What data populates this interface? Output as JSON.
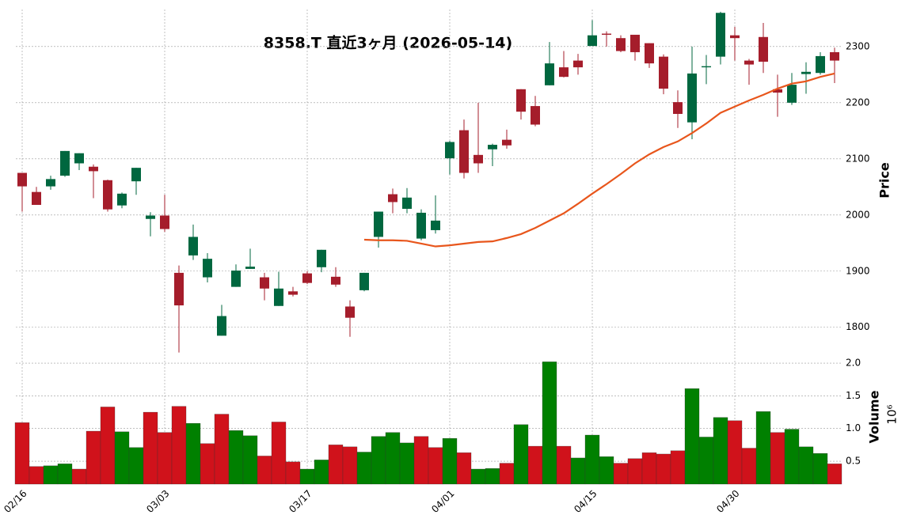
{
  "chart_data": [
    {
      "type": "candlestick",
      "title": "8358.T  直近3ヶ月  (2026-05-14)",
      "categories": [
        "02/16",
        null,
        null,
        null,
        null,
        null,
        null,
        null,
        null,
        null,
        "03/03",
        null,
        null,
        null,
        null,
        null,
        null,
        null,
        null,
        null,
        "03/17",
        null,
        null,
        null,
        null,
        null,
        null,
        null,
        null,
        null,
        "04/01",
        null,
        null,
        null,
        null,
        null,
        null,
        null,
        null,
        null,
        "04/15",
        null,
        null,
        null,
        null,
        null,
        null,
        null,
        null,
        null,
        "04/30",
        null,
        null,
        null,
        null,
        null,
        null,
        null
      ],
      "open": [
        2075,
        2041,
        2051,
        2070,
        2092,
        2086,
        2062,
        2017,
        2060,
        1993,
        1999,
        1897,
        1928,
        1889,
        1785,
        1872,
        1904,
        1889,
        1838,
        1864,
        1896,
        1907,
        1890,
        1837,
        1866,
        1961,
        2037,
        2011,
        1958,
        1973,
        2101,
        2151,
        2107,
        2117,
        2134,
        2224,
        2194,
        2231,
        2263,
        2275,
        2301,
        2323,
        2315,
        2321,
        2306,
        2282,
        2201,
        2165,
        2263,
        2282,
        2320,
        2275,
        2317,
        2224,
        2200,
        2251,
        2253,
        2290
      ],
      "high": [
        2075,
        2050,
        2070,
        2114,
        2110,
        2090,
        2063,
        2040,
        2084,
        2005,
        2036,
        1910,
        1983,
        1932,
        1840,
        1912,
        1940,
        1897,
        1899,
        1872,
        1900,
        1938,
        1907,
        1848,
        1897,
        2006,
        2047,
        2048,
        2010,
        2035,
        2132,
        2170,
        2200,
        2127,
        2152,
        2224,
        2212,
        2308,
        2292,
        2287,
        2347,
        2327,
        2320,
        2321,
        2306,
        2286,
        2222,
        2300,
        2285,
        2362,
        2335,
        2278,
        2342,
        2250,
        2253,
        2272,
        2290,
        2298
      ],
      "low": [
        2006,
        2018,
        2045,
        2068,
        2080,
        2030,
        2006,
        2012,
        2036,
        1962,
        1970,
        1755,
        1920,
        1880,
        1785,
        1872,
        1904,
        1848,
        1838,
        1855,
        1877,
        1898,
        1872,
        1783,
        1864,
        1942,
        2003,
        2003,
        1955,
        1967,
        2072,
        2065,
        2075,
        2087,
        2118,
        2170,
        2158,
        2231,
        2245,
        2250,
        2301,
        2300,
        2290,
        2275,
        2262,
        2215,
        2155,
        2135,
        2233,
        2268,
        2275,
        2232,
        2253,
        2175,
        2196,
        2216,
        2250,
        2235
      ],
      "close": [
        2051,
        2018,
        2064,
        2114,
        2110,
        2078,
        2010,
        2038,
        2084,
        1999,
        1975,
        1839,
        1961,
        1922,
        1820,
        1901,
        1908,
        1869,
        1869,
        1858,
        1879,
        1938,
        1876,
        1817,
        1897,
        2006,
        2023,
        2031,
        2004,
        1990,
        2130,
        2075,
        2092,
        2125,
        2124,
        2184,
        2161,
        2270,
        2246,
        2263,
        2320,
        2321,
        2292,
        2290,
        2270,
        2225,
        2180,
        2252,
        2265,
        2360,
        2315,
        2268,
        2273,
        2218,
        2232,
        2255,
        2283,
        2275
      ],
      "up_color": "#00673f",
      "down_color": "#a51d2b",
      "ma": {
        "color": "#e8561c",
        "values": [
          null,
          null,
          null,
          null,
          null,
          null,
          null,
          null,
          null,
          null,
          null,
          null,
          null,
          null,
          null,
          null,
          null,
          null,
          null,
          null,
          null,
          null,
          null,
          null,
          1956,
          1955,
          1955,
          1954,
          1949,
          1944,
          1946,
          1949,
          1952,
          1953,
          1959,
          1966,
          1977,
          1990,
          2003,
          2020,
          2038,
          2055,
          2073,
          2092,
          2108,
          2121,
          2131,
          2146,
          2163,
          2182,
          2193,
          2204,
          2214,
          2225,
          2234,
          2238,
          2246,
          2252
        ]
      },
      "ylim": [
        1763,
        2366
      ],
      "yticks": [
        1800,
        1900,
        2000,
        2100,
        2200,
        2300
      ],
      "ylabel": "Price",
      "grid": true
    },
    {
      "type": "bar",
      "ylabel": "Volume",
      "offset_text": "10⁶",
      "values": [
        1.09,
        0.42,
        0.43,
        0.46,
        0.38,
        0.96,
        1.33,
        0.95,
        0.71,
        1.25,
        0.94,
        1.34,
        1.08,
        0.77,
        1.22,
        0.97,
        0.89,
        0.58,
        1.1,
        0.49,
        0.38,
        0.52,
        0.75,
        0.72,
        0.64,
        0.88,
        0.94,
        0.78,
        0.88,
        0.71,
        0.85,
        0.63,
        0.38,
        0.39,
        0.47,
        1.06,
        0.73,
        2.02,
        0.73,
        0.55,
        0.9,
        0.57,
        0.47,
        0.54,
        0.63,
        0.61,
        0.66,
        1.61,
        0.87,
        1.17,
        1.12,
        0.7,
        1.26,
        0.94,
        0.99,
        0.72,
        0.62,
        0.46
      ],
      "colors": [
        "#d0121b",
        "#d0121b",
        "#008000",
        "#008000",
        "#d0121b",
        "#d0121b",
        "#d0121b",
        "#008000",
        "#008000",
        "#d0121b",
        "#d0121b",
        "#d0121b",
        "#008000",
        "#d0121b",
        "#d0121b",
        "#008000",
        "#008000",
        "#d0121b",
        "#d0121b",
        "#d0121b",
        "#008000",
        "#008000",
        "#d0121b",
        "#d0121b",
        "#008000",
        "#008000",
        "#008000",
        "#008000",
        "#d0121b",
        "#d0121b",
        "#008000",
        "#d0121b",
        "#008000",
        "#008000",
        "#d0121b",
        "#008000",
        "#d0121b",
        "#008000",
        "#d0121b",
        "#008000",
        "#008000",
        "#008000",
        "#d0121b",
        "#d0121b",
        "#d0121b",
        "#d0121b",
        "#d0121b",
        "#008000",
        "#008000",
        "#008000",
        "#d0121b",
        "#d0121b",
        "#008000",
        "#d0121b",
        "#008000",
        "#008000",
        "#008000",
        "#d0121b"
      ],
      "ylim": [
        0.15,
        2.17
      ],
      "yticks": [
        {
          "value": 0.5,
          "label": "0.5"
        },
        {
          "value": 1,
          "label": "1.0"
        },
        {
          "value": 1.5,
          "label": "1.5"
        },
        {
          "value": 2,
          "label": "2.0"
        }
      ],
      "grid": true
    }
  ]
}
